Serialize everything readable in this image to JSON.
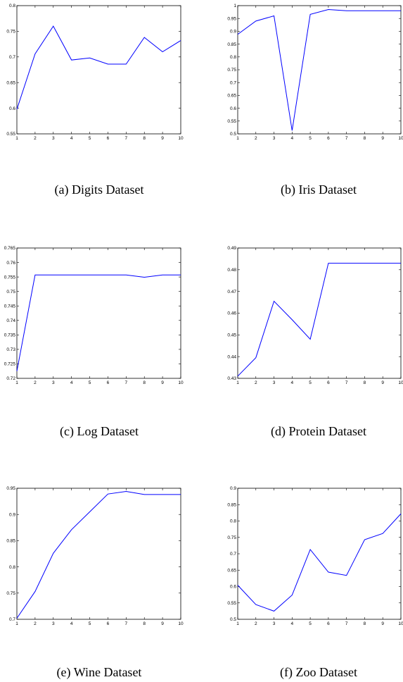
{
  "figure": {
    "line_color": "#0000ff"
  },
  "chart_data": [
    {
      "type": "line",
      "caption": "(a) Digits Dataset",
      "x": [
        1,
        2,
        3,
        4,
        5,
        6,
        7,
        8,
        9,
        10
      ],
      "y": [
        0.598,
        0.706,
        0.76,
        0.694,
        0.698,
        0.686,
        0.686,
        0.738,
        0.71,
        0.732
      ],
      "xlim": [
        1,
        10
      ],
      "ylim": [
        0.55,
        0.8
      ],
      "xticks": [
        "1",
        "2",
        "3",
        "4",
        "5",
        "6",
        "7",
        "8",
        "9",
        "10"
      ],
      "yticks": [
        "0.55",
        "0.6",
        "0.65",
        "0.7",
        "0.75",
        "0.8"
      ],
      "yticks_values": [
        0.55,
        0.6,
        0.65,
        0.7,
        0.75,
        0.8
      ],
      "grid": false
    },
    {
      "type": "line",
      "caption": "(b) Iris Dataset",
      "x": [
        1,
        2,
        3,
        4,
        5,
        6,
        7,
        8,
        9,
        10
      ],
      "y": [
        0.888,
        0.94,
        0.96,
        0.513,
        0.966,
        0.985,
        0.98,
        0.98,
        0.98,
        0.98
      ],
      "xlim": [
        1,
        10
      ],
      "ylim": [
        0.5,
        1
      ],
      "xticks": [
        "1",
        "2",
        "3",
        "4",
        "5",
        "6",
        "7",
        "8",
        "9",
        "10"
      ],
      "yticks": [
        "0.5",
        "0.55",
        "0.6",
        "0.65",
        "0.7",
        "0.75",
        "0.8",
        "0.85",
        "0.9",
        "0.95",
        "1"
      ],
      "yticks_values": [
        0.5,
        0.55,
        0.6,
        0.65,
        0.7,
        0.75,
        0.8,
        0.85,
        0.9,
        0.95,
        1
      ],
      "grid": false
    },
    {
      "type": "line",
      "caption": "(c) Log Dataset",
      "x": [
        1,
        2,
        3,
        4,
        5,
        6,
        7,
        8,
        9,
        10
      ],
      "y": [
        0.7225,
        0.7557,
        0.7557,
        0.7557,
        0.7557,
        0.7557,
        0.7557,
        0.7549,
        0.7557,
        0.7557
      ],
      "xlim": [
        1,
        10
      ],
      "ylim": [
        0.72,
        0.765
      ],
      "xticks": [
        "1",
        "2",
        "3",
        "4",
        "5",
        "6",
        "7",
        "8",
        "9",
        "10"
      ],
      "yticks": [
        "0.72",
        "0.725",
        "0.73",
        "0.735",
        "0.74",
        "0.745",
        "0.75",
        "0.755",
        "0.76",
        "0.765"
      ],
      "yticks_values": [
        0.72,
        0.725,
        0.73,
        0.735,
        0.74,
        0.745,
        0.75,
        0.755,
        0.76,
        0.765
      ],
      "grid": false
    },
    {
      "type": "line",
      "caption": "(d) Protein Dataset",
      "x": [
        1,
        2,
        3,
        4,
        5,
        6,
        7,
        8,
        9,
        10
      ],
      "y": [
        0.431,
        0.4395,
        0.4655,
        0.457,
        0.448,
        0.483,
        0.483,
        0.483,
        0.483,
        0.483
      ],
      "xlim": [
        1,
        10
      ],
      "ylim": [
        0.43,
        0.49
      ],
      "xticks": [
        "1",
        "2",
        "3",
        "4",
        "5",
        "6",
        "7",
        "8",
        "9",
        "10"
      ],
      "yticks": [
        "0.43",
        "0.44",
        "0.45",
        "0.46",
        "0.47",
        "0.48",
        "0.49"
      ],
      "yticks_values": [
        0.43,
        0.44,
        0.45,
        0.46,
        0.47,
        0.48,
        0.49
      ],
      "grid": false
    },
    {
      "type": "line",
      "caption": "(e) Wine Dataset",
      "x": [
        1,
        2,
        3,
        4,
        5,
        6,
        7,
        8,
        9,
        10
      ],
      "y": [
        0.702,
        0.753,
        0.826,
        0.871,
        0.905,
        0.939,
        0.944,
        0.938,
        0.938,
        0.938
      ],
      "xlim": [
        1,
        10
      ],
      "ylim": [
        0.7,
        0.95
      ],
      "xticks": [
        "1",
        "2",
        "3",
        "4",
        "5",
        "6",
        "7",
        "8",
        "9",
        "10"
      ],
      "yticks": [
        "0.7",
        "0.75",
        "0.8",
        "0.85",
        "0.9",
        "0.95"
      ],
      "yticks_values": [
        0.7,
        0.75,
        0.8,
        0.85,
        0.9,
        0.95
      ],
      "grid": false
    },
    {
      "type": "line",
      "caption": "(f) Zoo Dataset",
      "x": [
        1,
        2,
        3,
        4,
        5,
        6,
        7,
        8,
        9,
        10
      ],
      "y": [
        0.604,
        0.545,
        0.525,
        0.574,
        0.713,
        0.644,
        0.634,
        0.743,
        0.762,
        0.822
      ],
      "xlim": [
        1,
        10
      ],
      "ylim": [
        0.5,
        0.9
      ],
      "xticks": [
        "1",
        "2",
        "3",
        "4",
        "5",
        "6",
        "7",
        "8",
        "9",
        "10"
      ],
      "yticks": [
        "0.5",
        "0.55",
        "0.6",
        "0.65",
        "0.7",
        "0.75",
        "0.8",
        "0.85",
        "0.9"
      ],
      "yticks_values": [
        0.5,
        0.55,
        0.6,
        0.65,
        0.7,
        0.75,
        0.8,
        0.85,
        0.9
      ],
      "grid": false
    }
  ]
}
